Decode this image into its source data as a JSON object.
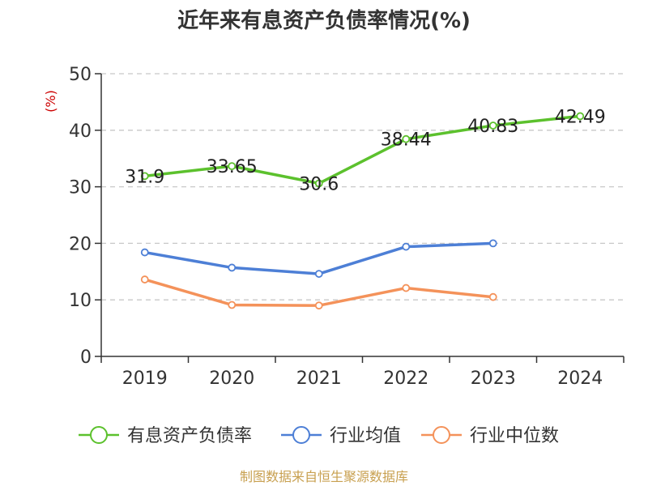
{
  "chart_data": {
    "type": "line",
    "title": "近年来有息资产负债率情况(%)",
    "ylabel": "(%)",
    "xlabel": "",
    "categories": [
      "2019",
      "2020",
      "2021",
      "2022",
      "2023",
      "2024"
    ],
    "ylim": [
      0,
      50
    ],
    "yticks": [
      0,
      10,
      20,
      30,
      40,
      50
    ],
    "grid": true,
    "legend_position": "bottom",
    "series": [
      {
        "name": "有息资产负债率",
        "color": "#5cc12d",
        "values": [
          31.9,
          33.65,
          30.6,
          38.44,
          40.83,
          42.49
        ],
        "labels": [
          "31.9",
          "33.65",
          "30.6",
          "38.44",
          "40.83",
          "42.49"
        ]
      },
      {
        "name": "行业均值",
        "color": "#4d7fd6",
        "values": [
          18.4,
          15.7,
          14.6,
          19.4,
          20.0,
          null
        ]
      },
      {
        "name": "行业中位数",
        "color": "#f4925a",
        "values": [
          13.6,
          9.1,
          9.0,
          12.1,
          10.5,
          null
        ]
      }
    ],
    "source": "制图数据来自恒生聚源数据库"
  }
}
